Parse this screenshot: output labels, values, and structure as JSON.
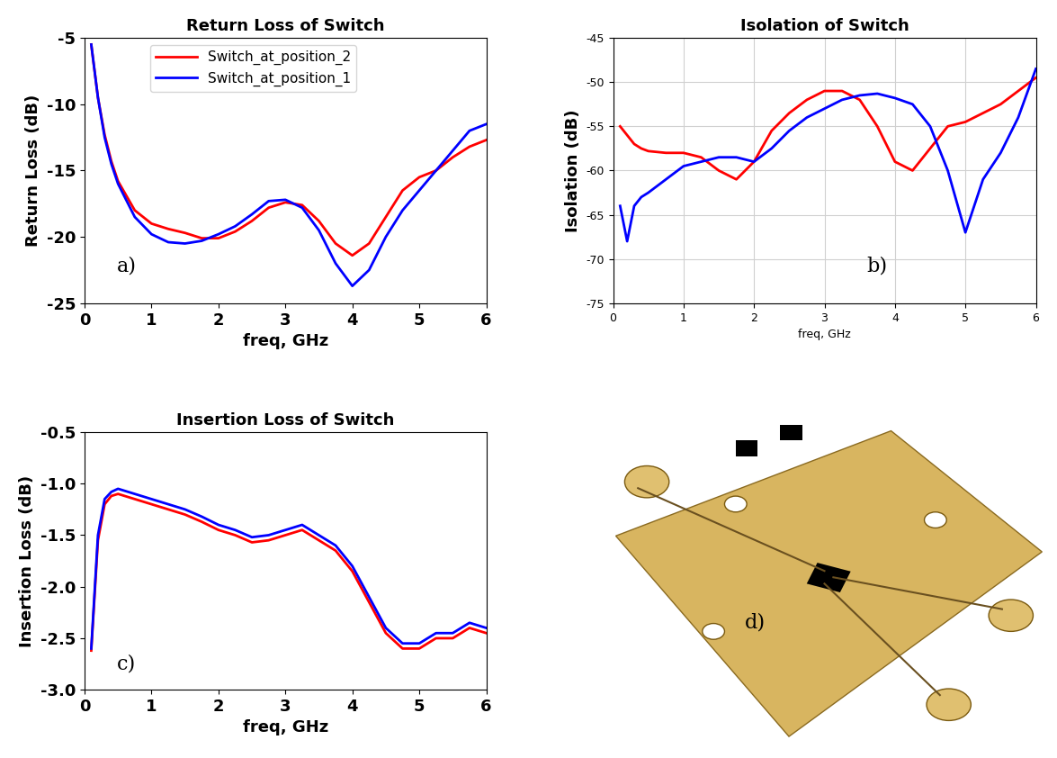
{
  "chart_data": [
    {
      "type": "line",
      "title": "Return Loss of Switch",
      "x_label": "freq, GHz",
      "y_label": "Return Loss (dB)",
      "annotations": [
        "a)"
      ],
      "legend": "upper center",
      "grid": false,
      "xlim": [
        0,
        6
      ],
      "xticks": [
        0,
        1,
        2,
        3,
        4,
        5,
        6
      ],
      "ylim": [
        -25,
        -5
      ],
      "yticks": [
        -25,
        -20,
        -15,
        -10,
        -5
      ],
      "x": [
        0.1,
        0.2,
        0.3,
        0.4,
        0.5,
        0.75,
        1.0,
        1.25,
        1.5,
        1.75,
        2.0,
        2.25,
        2.5,
        2.75,
        3.0,
        3.25,
        3.5,
        3.75,
        4.0,
        4.25,
        4.5,
        4.75,
        5.0,
        5.25,
        5.5,
        5.75,
        6.0
      ],
      "series": [
        {
          "name": "Switch_at_position_2",
          "color": "#ff0000",
          "values": [
            -5.5,
            -9.5,
            -12.3,
            -14.3,
            -15.8,
            -18.0,
            -19.0,
            -19.4,
            -19.7,
            -20.1,
            -20.1,
            -19.6,
            -18.8,
            -17.8,
            -17.4,
            -17.6,
            -18.8,
            -20.5,
            -21.4,
            -20.5,
            -18.5,
            -16.5,
            -15.5,
            -15.0,
            -14.0,
            -13.2,
            -12.7
          ]
        },
        {
          "name": "Switch_at_position_1",
          "color": "#0000ff",
          "values": [
            -5.5,
            -9.5,
            -12.5,
            -14.5,
            -16.0,
            -18.5,
            -19.8,
            -20.4,
            -20.5,
            -20.3,
            -19.8,
            -19.2,
            -18.3,
            -17.3,
            -17.2,
            -17.8,
            -19.5,
            -22.0,
            -23.7,
            -22.5,
            -20.0,
            -18.0,
            -16.5,
            -15.0,
            -13.5,
            -12.0,
            -11.5
          ]
        }
      ]
    },
    {
      "type": "line",
      "title": "Isolation of Switch",
      "x_label": "freq, GHz",
      "y_label": "Isolation (dB)",
      "annotations": [
        "b)"
      ],
      "grid": true,
      "xlim": [
        0,
        6
      ],
      "xticks": [
        0,
        1,
        2,
        3,
        4,
        5,
        6
      ],
      "ylim": [
        -75,
        -45
      ],
      "yticks": [
        -75,
        -70,
        -65,
        -60,
        -55,
        -50,
        -45
      ],
      "x": [
        0.1,
        0.2,
        0.3,
        0.4,
        0.5,
        0.75,
        1.0,
        1.25,
        1.5,
        1.75,
        2.0,
        2.25,
        2.5,
        2.75,
        3.0,
        3.25,
        3.5,
        3.75,
        4.0,
        4.25,
        4.5,
        4.75,
        5.0,
        5.25,
        5.5,
        5.75,
        6.0
      ],
      "series": [
        {
          "name": "Switch_at_position_2",
          "color": "#ff0000",
          "values": [
            -55,
            -56,
            -57,
            -57.5,
            -57.8,
            -58,
            -58,
            -58.5,
            -60,
            -61,
            -59,
            -55.5,
            -53.5,
            -52,
            -51,
            -51,
            -52,
            -55,
            -59,
            -60,
            -57.5,
            -55,
            -54.5,
            -53.5,
            -52.5,
            -51,
            -49.5
          ]
        },
        {
          "name": "Switch_at_position_1",
          "color": "#0000ff",
          "values": [
            -64,
            -68,
            -64,
            -63,
            -62.5,
            -61,
            -59.5,
            -59,
            -58.5,
            -58.5,
            -59,
            -57.5,
            -55.5,
            -54,
            -53,
            -52,
            -51.5,
            -51.3,
            -51.8,
            -52.5,
            -55,
            -60,
            -67,
            -61,
            -58,
            -54,
            -48.5
          ]
        }
      ]
    },
    {
      "type": "line",
      "title": "Insertion Loss of Switch",
      "x_label": "freq, GHz",
      "y_label": "Insertion Loss (dB)",
      "annotations": [
        "c)"
      ],
      "grid": false,
      "xlim": [
        0,
        6
      ],
      "xticks": [
        0,
        1,
        2,
        3,
        4,
        5,
        6
      ],
      "ylim": [
        -3.0,
        -0.5
      ],
      "yticks": [
        {
          "value": -3.0,
          "label": "-3.0"
        },
        -2.5,
        {
          "value": -2.0,
          "label": "-2.0"
        },
        -1.5,
        {
          "value": -1.0,
          "label": "-1.0"
        },
        -0.5
      ],
      "x": [
        0.1,
        0.2,
        0.3,
        0.4,
        0.5,
        0.75,
        1.0,
        1.25,
        1.5,
        1.75,
        2.0,
        2.25,
        2.5,
        2.75,
        3.0,
        3.25,
        3.5,
        3.75,
        4.0,
        4.25,
        4.5,
        4.75,
        5.0,
        5.25,
        5.5,
        5.75,
        6.0
      ],
      "series": [
        {
          "name": "Switch_at_position_2",
          "color": "#ff0000",
          "values": [
            -2.62,
            -1.55,
            -1.2,
            -1.12,
            -1.1,
            -1.15,
            -1.2,
            -1.25,
            -1.3,
            -1.37,
            -1.45,
            -1.5,
            -1.57,
            -1.55,
            -1.5,
            -1.45,
            -1.55,
            -1.65,
            -1.85,
            -2.15,
            -2.45,
            -2.6,
            -2.6,
            -2.5,
            -2.5,
            -2.4,
            -2.45
          ]
        },
        {
          "name": "Switch_at_position_1",
          "color": "#0000ff",
          "values": [
            -2.6,
            -1.5,
            -1.15,
            -1.08,
            -1.05,
            -1.1,
            -1.15,
            -1.2,
            -1.25,
            -1.32,
            -1.4,
            -1.45,
            -1.52,
            -1.5,
            -1.45,
            -1.4,
            -1.5,
            -1.6,
            -1.8,
            -2.1,
            -2.4,
            -2.55,
            -2.55,
            -2.45,
            -2.45,
            -2.35,
            -2.4
          ]
        }
      ]
    }
  ],
  "photo": {
    "label": "d)"
  }
}
